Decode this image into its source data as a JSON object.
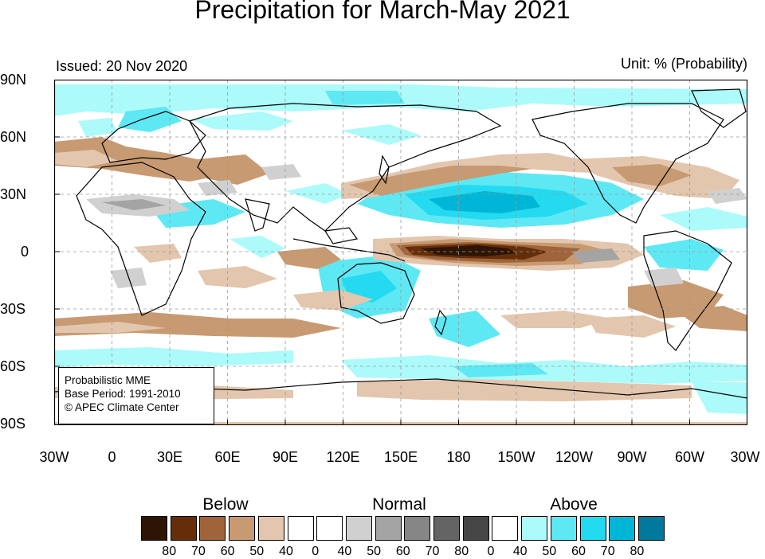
{
  "title": "Precipitation for March-May 2021",
  "issued": "Issued: 20 Nov 2020",
  "unit": "Unit: % (Probability)",
  "lat_labels": [
    "90N",
    "60N",
    "30N",
    "0",
    "30S",
    "60S",
    "90S"
  ],
  "lon_labels": [
    "30W",
    "0",
    "30E",
    "60E",
    "90E",
    "120E",
    "150E",
    "180",
    "150W",
    "120W",
    "90W",
    "60W",
    "30W"
  ],
  "info": {
    "line1": "Probabilistic MME",
    "line2": "Base Period: 1991-2010",
    "line3": "© APEC Climate Center"
  },
  "legend": {
    "below_label": "Below",
    "normal_label": "Normal",
    "above_label": "Above",
    "boxes": [
      {
        "color": "#2e1404",
        "tick": "80"
      },
      {
        "color": "#652e08",
        "tick": "70"
      },
      {
        "color": "#a0643a",
        "tick": "60"
      },
      {
        "color": "#c89a72",
        "tick": "50"
      },
      {
        "color": "#e3c6ae",
        "tick": "40"
      },
      {
        "color": "#ffffff",
        "tick": "0"
      },
      {
        "color": "#ffffff",
        "tick": "40"
      },
      {
        "color": "#d0d0d0",
        "tick": "50"
      },
      {
        "color": "#a4a4a4",
        "tick": "60"
      },
      {
        "color": "#868686",
        "tick": "70"
      },
      {
        "color": "#646464",
        "tick": "80"
      },
      {
        "color": "#464646",
        "tick": "0"
      },
      {
        "color": "#ffffff",
        "tick": "40"
      },
      {
        "color": "#acfafa",
        "tick": "50"
      },
      {
        "color": "#5ee8f4",
        "tick": "60"
      },
      {
        "color": "#24daf0",
        "tick": "70"
      },
      {
        "color": "#00b6d6",
        "tick": "80"
      },
      {
        "color": "#007a9a",
        "tick": ""
      }
    ]
  }
}
